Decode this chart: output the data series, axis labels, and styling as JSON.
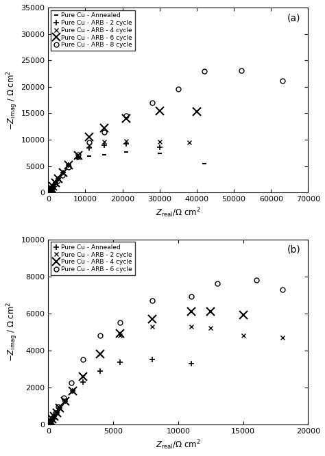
{
  "plot_a": {
    "panel_label": "(a)",
    "xlim": [
      0,
      70000
    ],
    "ylim": [
      0,
      35000
    ],
    "xticks": [
      0,
      10000,
      20000,
      30000,
      40000,
      50000,
      60000,
      70000
    ],
    "yticks": [
      0,
      5000,
      10000,
      15000,
      20000,
      25000,
      30000,
      35000
    ],
    "series": [
      {
        "label": "Pure Cu - Annealed",
        "marker": "_",
        "markersize": 5,
        "markeredgewidth": 1.5,
        "color": "black",
        "facecolor": "black",
        "x": [
          50,
          100,
          150,
          200,
          300,
          450,
          650,
          900,
          1300,
          1900,
          2700,
          4000,
          5500,
          8000,
          11000,
          15000,
          21000,
          30000,
          42000
        ],
        "y": [
          40,
          80,
          130,
          190,
          280,
          430,
          620,
          880,
          1250,
          1800,
          2600,
          3800,
          5200,
          6500,
          6900,
          7200,
          7700,
          7400,
          5500
        ]
      },
      {
        "label": "Pure Cu - ARB - 2 cycle",
        "marker": "+",
        "markersize": 6,
        "markeredgewidth": 1.2,
        "color": "black",
        "facecolor": "black",
        "x": [
          50,
          100,
          150,
          200,
          300,
          450,
          650,
          900,
          1300,
          1900,
          2700,
          4000,
          5500,
          8000,
          11000,
          15000,
          21000,
          30000
        ],
        "y": [
          40,
          80,
          130,
          190,
          280,
          430,
          620,
          880,
          1250,
          1800,
          2600,
          3800,
          5200,
          6600,
          8500,
          9000,
          9300,
          8600
        ]
      },
      {
        "label": "Pure Cu - ARB - 4 cycle",
        "marker": "x",
        "markersize": 5,
        "markeredgewidth": 1.0,
        "color": "black",
        "facecolor": "black",
        "x": [
          50,
          100,
          150,
          200,
          300,
          450,
          650,
          900,
          1300,
          1900,
          2700,
          4000,
          5500,
          8000,
          11000,
          15000,
          21000,
          30000,
          38000
        ],
        "y": [
          40,
          80,
          130,
          190,
          280,
          430,
          620,
          880,
          1250,
          1800,
          2600,
          3800,
          5200,
          6600,
          9000,
          9600,
          9700,
          9600,
          9500
        ]
      },
      {
        "label": "Pure Cu - ARB - 6 cycle",
        "marker": "x",
        "markersize": 8,
        "markeredgewidth": 1.5,
        "color": "black",
        "facecolor": "black",
        "x": [
          50,
          100,
          150,
          200,
          300,
          450,
          650,
          900,
          1300,
          1900,
          2700,
          4000,
          5500,
          8000,
          11000,
          15000,
          21000,
          30000,
          40000
        ],
        "y": [
          40,
          80,
          130,
          190,
          280,
          430,
          620,
          880,
          1250,
          1800,
          2600,
          3800,
          5200,
          7000,
          10500,
          12200,
          14000,
          15500,
          15300
        ]
      },
      {
        "label": "Pure Cu - ARB - 8 cycle",
        "marker": "o",
        "markersize": 5,
        "markeredgewidth": 1.0,
        "color": "black",
        "facecolor": "none",
        "x": [
          500,
          800,
          1200,
          1800,
          2600,
          3800,
          5500,
          8000,
          11000,
          15000,
          21000,
          28000,
          35000,
          42000,
          52000,
          63000
        ],
        "y": [
          450,
          700,
          1050,
          1550,
          2250,
          3300,
          4800,
          7200,
          9500,
          11500,
          14500,
          17000,
          19600,
          23000,
          23100,
          21200
        ]
      }
    ]
  },
  "plot_b": {
    "panel_label": "(b)",
    "xlim": [
      0,
      20000
    ],
    "ylim": [
      0,
      10000
    ],
    "xticks": [
      0,
      5000,
      10000,
      15000,
      20000
    ],
    "yticks": [
      0,
      2000,
      4000,
      6000,
      8000,
      10000
    ],
    "series": [
      {
        "label": "Pure Cu - Annealed",
        "marker": "+",
        "markersize": 6,
        "markeredgewidth": 1.2,
        "color": "black",
        "facecolor": "black",
        "x": [
          50,
          100,
          150,
          200,
          300,
          450,
          650,
          900,
          1300,
          1900,
          2700,
          4000,
          5500,
          8000,
          11000
        ],
        "y": [
          40,
          80,
          130,
          190,
          280,
          430,
          620,
          880,
          1250,
          1800,
          2300,
          2900,
          3350,
          3500,
          3300
        ]
      },
      {
        "label": "Pure Cu - ARB - 2 cycle",
        "marker": "x",
        "markersize": 5,
        "markeredgewidth": 1.0,
        "color": "black",
        "facecolor": "black",
        "x": [
          50,
          100,
          150,
          200,
          300,
          450,
          650,
          900,
          1300,
          1900,
          2700,
          4000,
          5500,
          8000,
          11000,
          12500,
          15000,
          18000
        ],
        "y": [
          40,
          80,
          130,
          190,
          280,
          430,
          620,
          880,
          1250,
          1800,
          2600,
          3800,
          4800,
          5300,
          5300,
          5200,
          4800,
          4700
        ]
      },
      {
        "label": "Pure Cu - ARB - 4 cycle",
        "marker": "x",
        "markersize": 8,
        "markeredgewidth": 1.5,
        "color": "black",
        "facecolor": "black",
        "x": [
          50,
          100,
          150,
          200,
          300,
          450,
          650,
          900,
          1300,
          1900,
          2700,
          4000,
          5500,
          8000,
          11000,
          12500,
          15000
        ],
        "y": [
          40,
          80,
          130,
          190,
          280,
          430,
          620,
          880,
          1250,
          1800,
          2600,
          3800,
          4900,
          5700,
          6100,
          6100,
          5900
        ]
      },
      {
        "label": "Pure Cu - ARB - 6 cycle",
        "marker": "o",
        "markersize": 5,
        "markeredgewidth": 1.0,
        "color": "black",
        "facecolor": "none",
        "x": [
          100,
          200,
          350,
          550,
          800,
          1200,
          1800,
          2700,
          4000,
          5500,
          8000,
          11000,
          13000,
          16000,
          18000
        ],
        "y": [
          100,
          200,
          380,
          620,
          950,
          1450,
          2250,
          3500,
          4800,
          5500,
          6700,
          6900,
          7600,
          7800,
          7300
        ]
      }
    ]
  }
}
